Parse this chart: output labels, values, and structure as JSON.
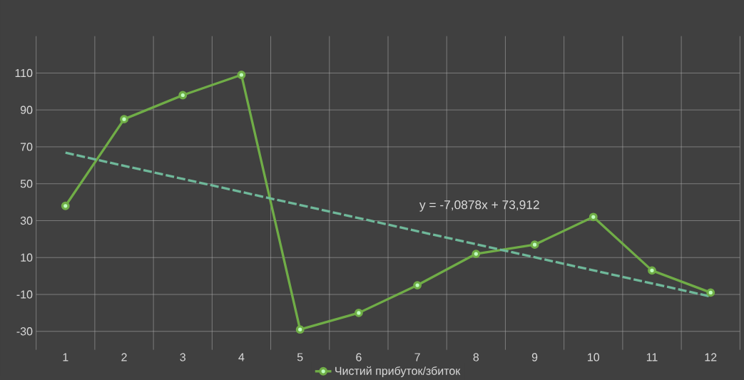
{
  "chart_data": {
    "type": "line",
    "x": [
      1,
      2,
      3,
      4,
      5,
      6,
      7,
      8,
      9,
      10,
      11,
      12
    ],
    "xlim": [
      0.5,
      12.5
    ],
    "xticks": [
      1,
      2,
      3,
      4,
      5,
      6,
      7,
      8,
      9,
      10,
      11,
      12
    ],
    "ylim": [
      -40,
      130
    ],
    "yticks": [
      -30,
      -10,
      10,
      30,
      50,
      70,
      90,
      110
    ],
    "grid": true,
    "legend": "bottom",
    "marker": "circle",
    "series": [
      {
        "name": "Чистий прибуток/збиток",
        "color": "#70ad47",
        "values": [
          38,
          85,
          98,
          109,
          -29,
          -20,
          -5,
          12,
          17,
          32,
          3,
          -9
        ]
      },
      {
        "type": "line",
        "x": [
          1,
          12
        ],
        "color": "#6fb89a",
        "line_style": "dashed",
        "marker": "none",
        "values": [
          66.8,
          -11.1
        ]
      }
    ],
    "annotations": [
      "y = -7,0878x + 73,912"
    ]
  }
}
